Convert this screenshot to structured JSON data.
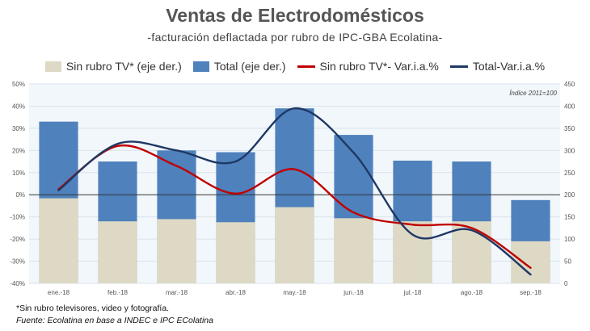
{
  "title": "Ventas de Electrodomésticos",
  "subtitle": "-facturación deflactada por rubro de IPC-GBA Ecolatina-",
  "footnote": "*Sin rubro televisores, video y fotografía.",
  "source": "Fuente: Ecolatina en base a INDEC e IPC EColatina",
  "chart_data": {
    "type": "bar+line",
    "annotation": "Índice 2011=100",
    "categories": [
      "ene.-18",
      "feb.-18",
      "mar.-18",
      "abr.-18",
      "may.-18",
      "jun.-18",
      "jul.-18",
      "ago.-18",
      "sep.-18"
    ],
    "left_axis": {
      "ylim": [
        -40,
        50
      ],
      "ticks": [
        "50%",
        "40%",
        "30%",
        "20%",
        "10%",
        "0%",
        "-10%",
        "-20%",
        "-30%",
        "-40%"
      ],
      "tick_values": [
        50,
        40,
        30,
        20,
        10,
        0,
        -10,
        -20,
        -30,
        -40
      ]
    },
    "right_axis": {
      "ylim": [
        0,
        450
      ],
      "ticks": [
        "450",
        "400",
        "350",
        "300",
        "250",
        "200",
        "150",
        "100",
        "50",
        "0"
      ],
      "tick_values": [
        450,
        400,
        350,
        300,
        250,
        200,
        150,
        100,
        50,
        0
      ]
    },
    "series": [
      {
        "name": "Sin rubro TV* (eje der.)",
        "type": "bar",
        "axis": "right",
        "color": "#ddd9c4",
        "values": [
          192,
          140,
          145,
          138,
          172,
          147,
          140,
          140,
          95
        ]
      },
      {
        "name": "Total (eje der.)",
        "type": "bar",
        "axis": "right",
        "color": "#4f81bd",
        "values": [
          365,
          275,
          300,
          296,
          395,
          335,
          277,
          275,
          188
        ]
      },
      {
        "name": "Sin rubro TV*- Var.i.a.%",
        "type": "line",
        "axis": "left",
        "color": "#c00000",
        "values": [
          2.5,
          22,
          13,
          0.5,
          11.5,
          -8,
          -13.5,
          -15,
          -33
        ]
      },
      {
        "name": "Total-Var.i.a.%",
        "type": "line",
        "axis": "left",
        "color": "#1f3864",
        "values": [
          2,
          23,
          20,
          15,
          39,
          19,
          -18,
          -16,
          -36
        ]
      }
    ]
  }
}
